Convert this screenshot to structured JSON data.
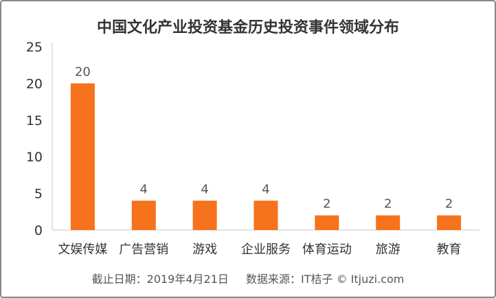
{
  "chart_data": {
    "type": "bar",
    "title": "中国文化产业投资基金历史投资事件领域分布",
    "categories": [
      "文娱传媒",
      "广告营销",
      "游戏",
      "企业服务",
      "体育运动",
      "旅游",
      "教育"
    ],
    "values": [
      20,
      4,
      4,
      4,
      2,
      2,
      2
    ],
    "ylim": [
      0,
      25
    ],
    "yticks": [
      0,
      5,
      10,
      15,
      20,
      25
    ],
    "xlabel": "",
    "ylabel": "",
    "grid": false,
    "bar_color": "#F7721C"
  },
  "footer": {
    "date": "截止日期：2019年4月21日",
    "source": "数据来源：IT桔子 © Itjuzi.com"
  }
}
